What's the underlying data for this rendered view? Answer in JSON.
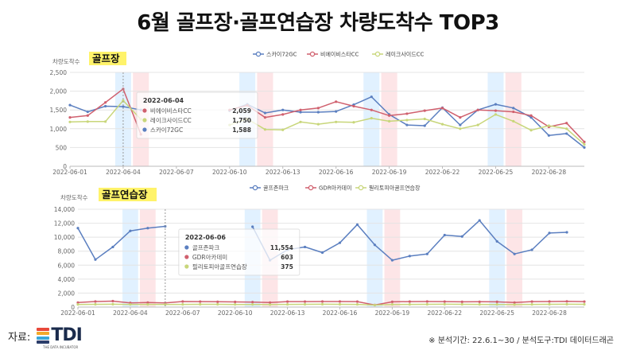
{
  "title": "6월 골프장·골프연습장 차량도착수 TOP3",
  "footer": {
    "source_label": "자료:",
    "logo_text": "TDI",
    "logo_sub": "THE DATA INCUBATOR",
    "logo_colors": [
      "#e8483a",
      "#f3a92b",
      "#3aa7d9",
      "#2c3e6b"
    ],
    "note": "※ 분석기간: 22.6.1~30 / 분석도구:TDI 데이터드래곤"
  },
  "chart_data": [
    {
      "type": "line",
      "section_label": "골프장",
      "ylabel": "차량도착수",
      "ylim": [
        0,
        2500
      ],
      "yticks": [
        0,
        500,
        1000,
        1500,
        2000,
        2500
      ],
      "ytick_labels": [
        "0",
        "500",
        "1,000",
        "1,500",
        "2,000",
        "2,500"
      ],
      "x": [
        "2022-06-01",
        "2022-06-02",
        "2022-06-03",
        "2022-06-04",
        "2022-06-05",
        "2022-06-06",
        "2022-06-07",
        "2022-06-08",
        "2022-06-09",
        "2022-06-10",
        "2022-06-11",
        "2022-06-12",
        "2022-06-13",
        "2022-06-14",
        "2022-06-15",
        "2022-06-16",
        "2022-06-17",
        "2022-06-18",
        "2022-06-19",
        "2022-06-20",
        "2022-06-21",
        "2022-06-22",
        "2022-06-23",
        "2022-06-24",
        "2022-06-25",
        "2022-06-26",
        "2022-06-27",
        "2022-06-28",
        "2022-06-29",
        "2022-06-30"
      ],
      "xtick_labels": [
        "2022-06-01",
        "2022-06-04",
        "2022-06-07",
        "2022-06-10",
        "2022-06-13",
        "2022-06-16",
        "2022-06-19",
        "2022-06-22",
        "2022-06-25",
        "2022-06-28"
      ],
      "grid": true,
      "legend_position": "top-right",
      "highlight_saturdays": [
        "2022-06-04",
        "2022-06-11",
        "2022-06-18",
        "2022-06-25"
      ],
      "highlight_sundays": [
        "2022-06-05",
        "2022-06-12",
        "2022-06-19",
        "2022-06-26"
      ],
      "series": [
        {
          "name": "스카이72GC",
          "color": "#5b7fc0",
          "values": [
            1630,
            1450,
            1600,
            1588,
            1500,
            null,
            null,
            null,
            null,
            1480,
            1650,
            1420,
            1500,
            1440,
            1440,
            1460,
            1640,
            1850,
            1380,
            1100,
            1080,
            1560,
            1100,
            1500,
            1650,
            1550,
            1300,
            820,
            870,
            500
          ]
        },
        {
          "name": "비에이비스타CC",
          "color": "#d0606e",
          "values": [
            1300,
            1350,
            1700,
            2059,
            850,
            null,
            null,
            null,
            null,
            1500,
            1620,
            1300,
            1380,
            1500,
            1550,
            1720,
            1600,
            1500,
            1350,
            1400,
            1480,
            1550,
            1300,
            1500,
            1480,
            1450,
            1350,
            1050,
            1150,
            650
          ]
        },
        {
          "name": "레이크사이드CC",
          "color": "#c8d67a",
          "values": [
            1180,
            1190,
            1190,
            1750,
            1250,
            null,
            null,
            null,
            null,
            1100,
            1260,
            980,
            970,
            1180,
            1120,
            1180,
            1170,
            1280,
            1200,
            1230,
            1260,
            1120,
            1000,
            1100,
            1380,
            1200,
            960,
            1080,
            1000,
            580
          ]
        }
      ],
      "tooltip": {
        "date": "2022-06-04",
        "rows": [
          {
            "name": "비에이비스타CC",
            "value": "2,059"
          },
          {
            "name": "레이크사이드CC",
            "value": "1,750"
          },
          {
            "name": "스카이72GC",
            "value": "1,588"
          }
        ]
      }
    },
    {
      "type": "line",
      "section_label": "골프연습장",
      "ylabel": "차량도착수",
      "ylim": [
        0,
        14000
      ],
      "yticks": [
        0,
        2000,
        4000,
        6000,
        8000,
        10000,
        12000,
        14000
      ],
      "ytick_labels": [
        "0",
        "2,000",
        "4,000",
        "6,000",
        "8,000",
        "10,000",
        "12,000",
        "14,000"
      ],
      "x": [
        "2022-06-01",
        "2022-06-02",
        "2022-06-03",
        "2022-06-04",
        "2022-06-05",
        "2022-06-06",
        "2022-06-07",
        "2022-06-08",
        "2022-06-09",
        "2022-06-10",
        "2022-06-11",
        "2022-06-12",
        "2022-06-13",
        "2022-06-14",
        "2022-06-15",
        "2022-06-16",
        "2022-06-17",
        "2022-06-18",
        "2022-06-19",
        "2022-06-20",
        "2022-06-21",
        "2022-06-22",
        "2022-06-23",
        "2022-06-24",
        "2022-06-25",
        "2022-06-26",
        "2022-06-27",
        "2022-06-28",
        "2022-06-29",
        "2022-06-30"
      ],
      "xtick_labels": [
        "2022-06-01",
        "2022-06-04",
        "2022-06-07",
        "2022-06-10",
        "2022-06-13",
        "2022-06-16",
        "2022-06-19",
        "2022-06-22",
        "2022-06-25",
        "2022-06-28"
      ],
      "grid": true,
      "legend_position": "top-right",
      "highlight_saturdays": [
        "2022-06-04",
        "2022-06-11",
        "2022-06-18",
        "2022-06-25"
      ],
      "highlight_sundays": [
        "2022-06-05",
        "2022-06-12",
        "2022-06-19",
        "2022-06-26"
      ],
      "series": [
        {
          "name": "골프존파크",
          "color": "#5b7fc0",
          "values": [
            11300,
            6800,
            8600,
            10900,
            11300,
            11554,
            null,
            null,
            null,
            null,
            11500,
            6700,
            8200,
            8600,
            7800,
            9200,
            11800,
            8900,
            6700,
            7300,
            7600,
            10300,
            10100,
            12400,
            9400,
            7600,
            8200,
            10600,
            10700,
            null
          ]
        },
        {
          "name": "GDR아카데미",
          "color": "#d0606e",
          "values": [
            650,
            800,
            850,
            600,
            650,
            603,
            800,
            780,
            760,
            740,
            720,
            650,
            780,
            780,
            800,
            800,
            780,
            300,
            750,
            780,
            800,
            780,
            750,
            760,
            750,
            650,
            780,
            800,
            820,
            780
          ]
        },
        {
          "name": "필리토피아골프연습장",
          "color": "#c8d67a",
          "values": [
            380,
            400,
            410,
            380,
            390,
            375,
            390,
            400,
            400,
            380,
            380,
            360,
            390,
            400,
            410,
            400,
            390,
            280,
            380,
            390,
            400,
            410,
            400,
            390,
            380,
            360,
            390,
            400,
            410,
            400
          ]
        }
      ],
      "tooltip": {
        "date": "2022-06-06",
        "rows": [
          {
            "name": "골프존파크",
            "value": "11,554"
          },
          {
            "name": "GDR아카데미",
            "value": "603"
          },
          {
            "name": "필리토피아골프연습장",
            "value": "375"
          }
        ]
      }
    }
  ]
}
